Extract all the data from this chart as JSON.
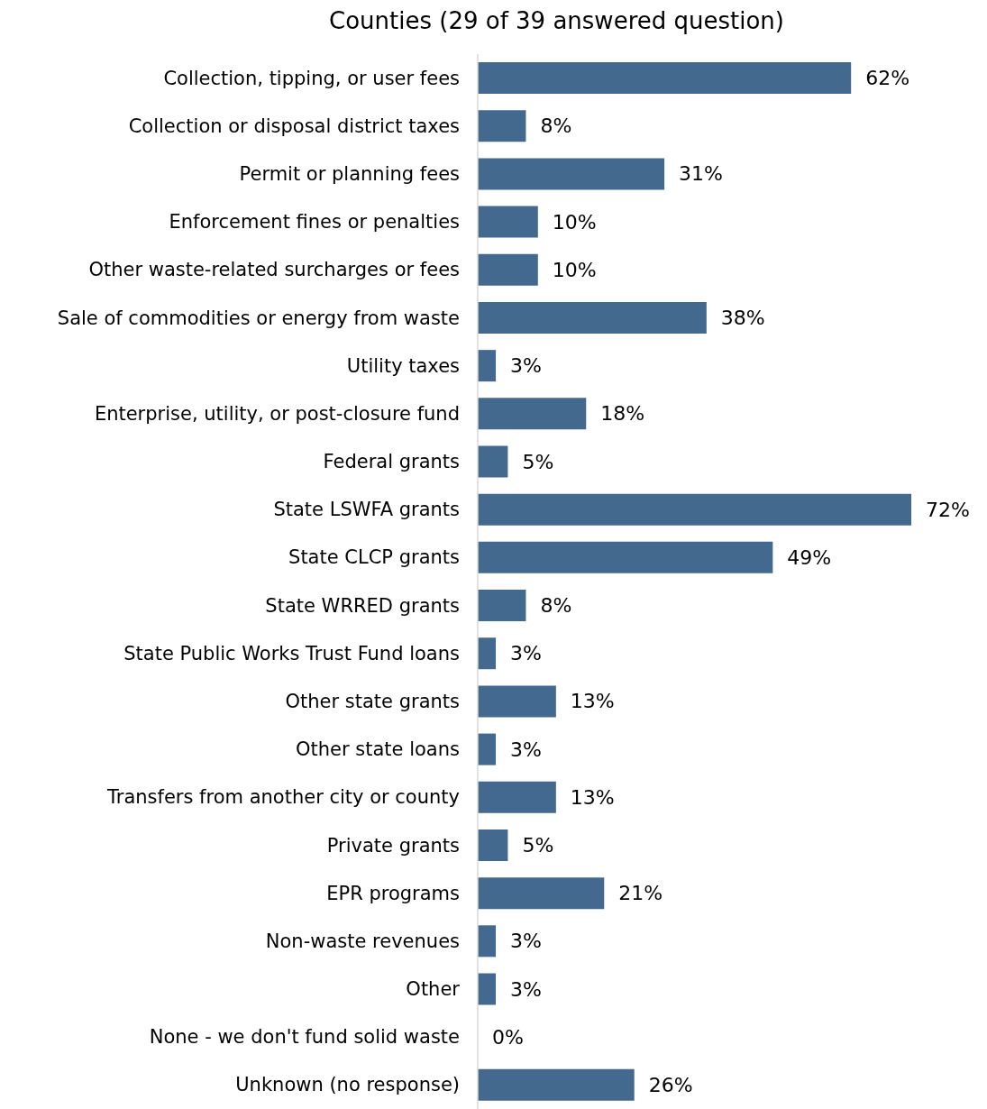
{
  "chart_data": {
    "type": "bar",
    "orientation": "horizontal",
    "title": "Counties (29 of 39 answered question)",
    "categories": [
      "Collection, tipping, or user fees",
      "Collection or disposal district taxes",
      "Permit or planning fees",
      "Enforcement fines or penalties",
      "Other waste-related surcharges or fees",
      "Sale of commodities or energy from waste",
      "Utility taxes",
      "Enterprise, utility, or post-closure fund",
      "Federal grants",
      "State LSWFA grants",
      "State CLCP grants",
      "State WRRED grants",
      "State Public Works Trust Fund loans",
      "Other state grants",
      "Other state loans",
      "Transfers from another city or county",
      "Private grants",
      "EPR programs",
      "Non-waste revenues",
      "Other",
      "None - we don't fund solid waste",
      "Unknown (no response)"
    ],
    "values": [
      62,
      8,
      31,
      10,
      10,
      38,
      3,
      18,
      5,
      72,
      49,
      8,
      3,
      13,
      3,
      13,
      5,
      21,
      3,
      3,
      0,
      26
    ],
    "value_labels": [
      "62%",
      "8%",
      "31%",
      "10%",
      "10%",
      "38%",
      "3%",
      "18%",
      "5%",
      "72%",
      "49%",
      "8%",
      "3%",
      "13%",
      "3%",
      "13%",
      "5%",
      "21%",
      "3%",
      "3%",
      "0%",
      "26%"
    ],
    "color": "#44698f"
  }
}
